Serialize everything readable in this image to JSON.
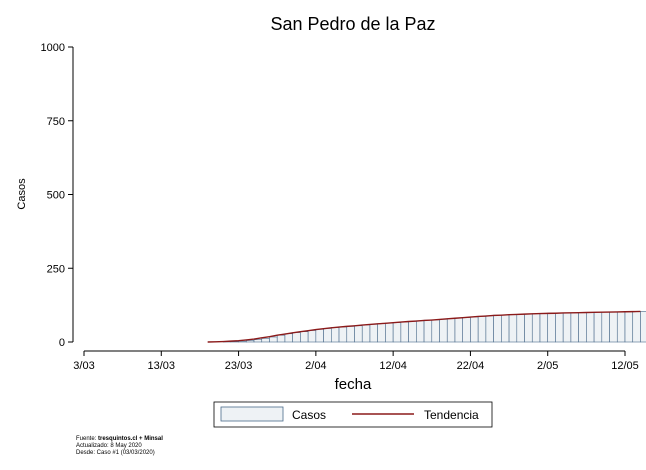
{
  "chart_data": {
    "type": "bar",
    "title": "San Pedro de la Paz",
    "xlabel": "fecha",
    "ylabel": "Casos",
    "ylim": [
      0,
      1000
    ],
    "yticks": [
      0,
      250,
      500,
      750,
      1000
    ],
    "xlim": [
      "2020-03-03",
      "2020-05-12"
    ],
    "xticks": [
      "3/03",
      "13/03",
      "23/03",
      "2/04",
      "12/04",
      "22/04",
      "2/05",
      "12/05"
    ],
    "grid": false,
    "legend_position": "bottom",
    "x_start": "2020-03-19",
    "series": [
      {
        "name": "Casos",
        "kind": "bar",
        "color": "#eef2f5",
        "edge": "#4a6a8a",
        "values": [
          0,
          0,
          1,
          2,
          3,
          5,
          8,
          12,
          17,
          23,
          28,
          32,
          35,
          39,
          43,
          46,
          49,
          51,
          53,
          55,
          58,
          60,
          62,
          64,
          66,
          68,
          70,
          72,
          74,
          75,
          77,
          79,
          81,
          83,
          85,
          87,
          89,
          91,
          92,
          93,
          94,
          95,
          96,
          97,
          98,
          98,
          99,
          99,
          100,
          100,
          101,
          101,
          102,
          102,
          103,
          103,
          104
        ]
      },
      {
        "name": "Tendencia",
        "kind": "line",
        "color": "#8b1a1a",
        "values": [
          0,
          0.5,
          1.5,
          3,
          4.5,
          7,
          10,
          14,
          18,
          23,
          27,
          31,
          35,
          38.5,
          42,
          45,
          48,
          50.5,
          53,
          55,
          57.5,
          59.5,
          61.5,
          63.5,
          65.5,
          67.5,
          69.5,
          71,
          73,
          74.5,
          76.5,
          78.5,
          80.5,
          82.5,
          84.5,
          86.5,
          88,
          90,
          91,
          92.5,
          93.5,
          94.5,
          95.5,
          96.5,
          97,
          97.5,
          98.5,
          99,
          99.5,
          100,
          100.5,
          101,
          101.5,
          102,
          102.5,
          103,
          103.5
        ]
      }
    ]
  },
  "source_note": {
    "line1_prefix": "Fuente: ",
    "line1_bold": "tresquintos.cl + Minsal",
    "line2": "Actualizado: 8 May 2020",
    "line3": "Desde: Caso #1  (03/03/2020)"
  }
}
